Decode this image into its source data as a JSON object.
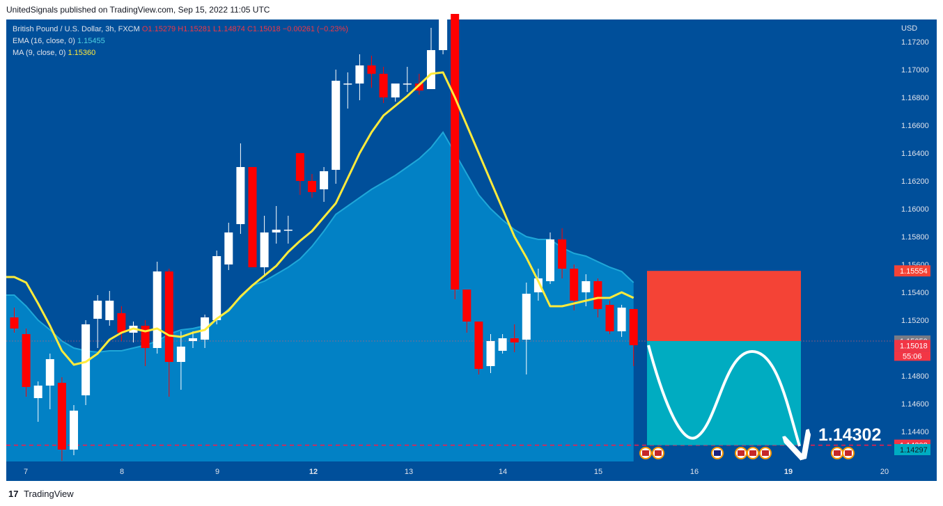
{
  "header": {
    "text": "UnitedSignals published on TradingView.com, Sep 15, 2022 11:05 UTC"
  },
  "legend": {
    "symbol": "British Pound / U.S. Dollar, 3h, FXCM",
    "open": "O1.15279",
    "high": "H1.15281",
    "low": "L1.14874",
    "close": "C1.15018",
    "change": "−0.00261 (−0.23%)",
    "ema_label": "EMA (16, close, 0)",
    "ema_value": "1.15455",
    "ma_label": "MA (9, close, 0)",
    "ma_value": "1.15360"
  },
  "footer": {
    "logo": "17",
    "brand": "TradingView"
  },
  "colors": {
    "background": "#004f9a",
    "area_fill": "#0284c7",
    "area_line": "#1fa7d8",
    "ma_line": "#ffeb3b",
    "up_candle": "#ffffff",
    "down_candle": "#ff0000",
    "stop_zone": "#f44336",
    "target_zone": "#00acc1",
    "target_level": "#ff1744"
  },
  "icons": {
    "event_flag_us": "us-flag-icon",
    "event_flag_uk": "uk-flag-icon",
    "tradingview_logo": "tradingview-logo-icon"
  },
  "chart_data": {
    "type": "candlestick",
    "currency": "USD",
    "ylim": [
      1.142,
      1.174
    ],
    "y_ticks": [
      "1.17200",
      "1.17000",
      "1.16800",
      "1.16600",
      "1.16400",
      "1.16200",
      "1.16000",
      "1.15800",
      "1.15600",
      "1.15400",
      "1.15200",
      "1.14800",
      "1.14600",
      "1.14400"
    ],
    "x_ticks": [
      "7",
      "8",
      "9",
      "12",
      "13",
      "14",
      "15",
      "16",
      "19",
      "20"
    ],
    "candles": [
      {
        "o": 1.1522,
        "h": 1.1529,
        "l": 1.1511,
        "c": 1.1514
      },
      {
        "o": 1.151,
        "h": 1.1514,
        "l": 1.1465,
        "c": 1.1472
      },
      {
        "o": 1.1464,
        "h": 1.1476,
        "l": 1.1447,
        "c": 1.1473
      },
      {
        "o": 1.1473,
        "h": 1.1496,
        "l": 1.1456,
        "c": 1.1492
      },
      {
        "o": 1.1475,
        "h": 1.1479,
        "l": 1.1419,
        "c": 1.1427
      },
      {
        "o": 1.1427,
        "h": 1.1459,
        "l": 1.1423,
        "c": 1.1455
      },
      {
        "o": 1.1466,
        "h": 1.152,
        "l": 1.1459,
        "c": 1.1517
      },
      {
        "o": 1.1521,
        "h": 1.1538,
        "l": 1.15,
        "c": 1.1534
      },
      {
        "o": 1.152,
        "h": 1.1541,
        "l": 1.1516,
        "c": 1.1534
      },
      {
        "o": 1.1525,
        "h": 1.153,
        "l": 1.1505,
        "c": 1.1511
      },
      {
        "o": 1.1511,
        "h": 1.1519,
        "l": 1.1504,
        "c": 1.1516
      },
      {
        "o": 1.1516,
        "h": 1.152,
        "l": 1.1487,
        "c": 1.15
      },
      {
        "o": 1.15,
        "h": 1.1562,
        "l": 1.1496,
        "c": 1.1555
      },
      {
        "o": 1.1555,
        "h": 1.1557,
        "l": 1.1465,
        "c": 1.149
      },
      {
        "o": 1.149,
        "h": 1.1512,
        "l": 1.147,
        "c": 1.1501
      },
      {
        "o": 1.1505,
        "h": 1.1512,
        "l": 1.15,
        "c": 1.1507
      },
      {
        "o": 1.1506,
        "h": 1.1524,
        "l": 1.15,
        "c": 1.1522
      },
      {
        "o": 1.152,
        "h": 1.157,
        "l": 1.1517,
        "c": 1.1566
      },
      {
        "o": 1.156,
        "h": 1.159,
        "l": 1.1556,
        "c": 1.1583
      },
      {
        "o": 1.1589,
        "h": 1.1647,
        "l": 1.1582,
        "c": 1.163
      },
      {
        "o": 1.163,
        "h": 1.163,
        "l": 1.1558,
        "c": 1.1558
      },
      {
        "o": 1.1558,
        "h": 1.1595,
        "l": 1.1552,
        "c": 1.1583
      },
      {
        "o": 1.1583,
        "h": 1.1602,
        "l": 1.1575,
        "c": 1.1585
      },
      {
        "o": 1.1585,
        "h": 1.1595,
        "l": 1.1575,
        "c": 1.1585
      },
      {
        "o": 1.164,
        "h": 1.164,
        "l": 1.161,
        "c": 1.162
      },
      {
        "o": 1.162,
        "h": 1.1625,
        "l": 1.1608,
        "c": 1.1612
      },
      {
        "o": 1.1614,
        "h": 1.163,
        "l": 1.1605,
        "c": 1.1627
      },
      {
        "o": 1.1628,
        "h": 1.17,
        "l": 1.1618,
        "c": 1.1692
      },
      {
        "o": 1.169,
        "h": 1.1698,
        "l": 1.1672,
        "c": 1.169
      },
      {
        "o": 1.169,
        "h": 1.1711,
        "l": 1.1678,
        "c": 1.1703
      },
      {
        "o": 1.1703,
        "h": 1.171,
        "l": 1.1687,
        "c": 1.1697
      },
      {
        "o": 1.1697,
        "h": 1.1702,
        "l": 1.1676,
        "c": 1.168
      },
      {
        "o": 1.168,
        "h": 1.169,
        "l": 1.1677,
        "c": 1.169
      },
      {
        "o": 1.169,
        "h": 1.1702,
        "l": 1.1684,
        "c": 1.169
      },
      {
        "o": 1.169,
        "h": 1.1697,
        "l": 1.1682,
        "c": 1.1685
      },
      {
        "o": 1.1686,
        "h": 1.173,
        "l": 1.1686,
        "c": 1.1714
      },
      {
        "o": 1.1714,
        "h": 1.1743,
        "l": 1.1711,
        "c": 1.1739
      },
      {
        "o": 1.174,
        "h": 1.174,
        "l": 1.1535,
        "c": 1.1542
      },
      {
        "o": 1.1542,
        "h": 1.1542,
        "l": 1.1511,
        "c": 1.1519
      },
      {
        "o": 1.1519,
        "h": 1.1519,
        "l": 1.1481,
        "c": 1.1485
      },
      {
        "o": 1.1487,
        "h": 1.151,
        "l": 1.1482,
        "c": 1.1505
      },
      {
        "o": 1.1498,
        "h": 1.151,
        "l": 1.1496,
        "c": 1.1507
      },
      {
        "o": 1.1507,
        "h": 1.1517,
        "l": 1.1497,
        "c": 1.1504
      },
      {
        "o": 1.1506,
        "h": 1.1547,
        "l": 1.1481,
        "c": 1.1539
      },
      {
        "o": 1.154,
        "h": 1.1557,
        "l": 1.1534,
        "c": 1.155
      },
      {
        "o": 1.1548,
        "h": 1.1583,
        "l": 1.1546,
        "c": 1.1578
      },
      {
        "o": 1.1578,
        "h": 1.1586,
        "l": 1.155,
        "c": 1.1557
      },
      {
        "o": 1.1557,
        "h": 1.156,
        "l": 1.1527,
        "c": 1.1534
      },
      {
        "o": 1.154,
        "h": 1.1553,
        "l": 1.153,
        "c": 1.1548
      },
      {
        "o": 1.1548,
        "h": 1.155,
        "l": 1.1522,
        "c": 1.1528
      },
      {
        "o": 1.1531,
        "h": 1.1534,
        "l": 1.151,
        "c": 1.1512
      },
      {
        "o": 1.1512,
        "h": 1.1531,
        "l": 1.1508,
        "c": 1.1529
      },
      {
        "o": 1.1528,
        "h": 1.1528,
        "l": 1.1487,
        "c": 1.1502
      }
    ],
    "ma": [
      1.1551,
      1.1547,
      1.1532,
      1.1516,
      1.1498,
      1.1488,
      1.149,
      1.1496,
      1.1506,
      1.1511,
      1.1514,
      1.1512,
      1.1514,
      1.1509,
      1.1508,
      1.1511,
      1.1513,
      1.1521,
      1.1527,
      1.1537,
      1.1545,
      1.1552,
      1.1559,
      1.1569,
      1.1577,
      1.1584,
      1.1594,
      1.1604,
      1.1622,
      1.164,
      1.1655,
      1.1667,
      1.1674,
      1.1681,
      1.1689,
      1.1697,
      1.1698,
      1.168,
      1.166,
      1.164,
      1.162,
      1.16,
      1.158,
      1.1565,
      1.1548,
      1.153,
      1.153,
      1.1532,
      1.1534,
      1.1536,
      1.1536,
      1.154,
      1.1536
    ],
    "ema_area": [
      1.1538,
      1.153,
      1.152,
      1.1513,
      1.1505,
      1.15,
      1.1498,
      1.1497,
      1.1498,
      1.1498,
      1.15,
      1.1502,
      1.1505,
      1.151,
      1.1513,
      1.1514,
      1.1516,
      1.152,
      1.1528,
      1.1536,
      1.1545,
      1.1548,
      1.1553,
      1.1558,
      1.1564,
      1.1573,
      1.1584,
      1.1596,
      1.1602,
      1.1608,
      1.1614,
      1.1619,
      1.1624,
      1.163,
      1.1636,
      1.1644,
      1.1655,
      1.164,
      1.1625,
      1.161,
      1.16,
      1.1592,
      1.1585,
      1.158,
      1.1578,
      1.1578,
      1.1572,
      1.1568,
      1.1566,
      1.1562,
      1.1558,
      1.1555,
      1.1547
    ],
    "current_price": "1.15018",
    "countdown": "55:06",
    "entry_label": "1.15050",
    "stop_label": "1.15554",
    "target_label": "1.14302",
    "ma_price_label": "1.14297",
    "stop_level": 1.15554,
    "entry_level": 1.1505,
    "target_level": 1.14302,
    "annotation": "1.14302"
  }
}
